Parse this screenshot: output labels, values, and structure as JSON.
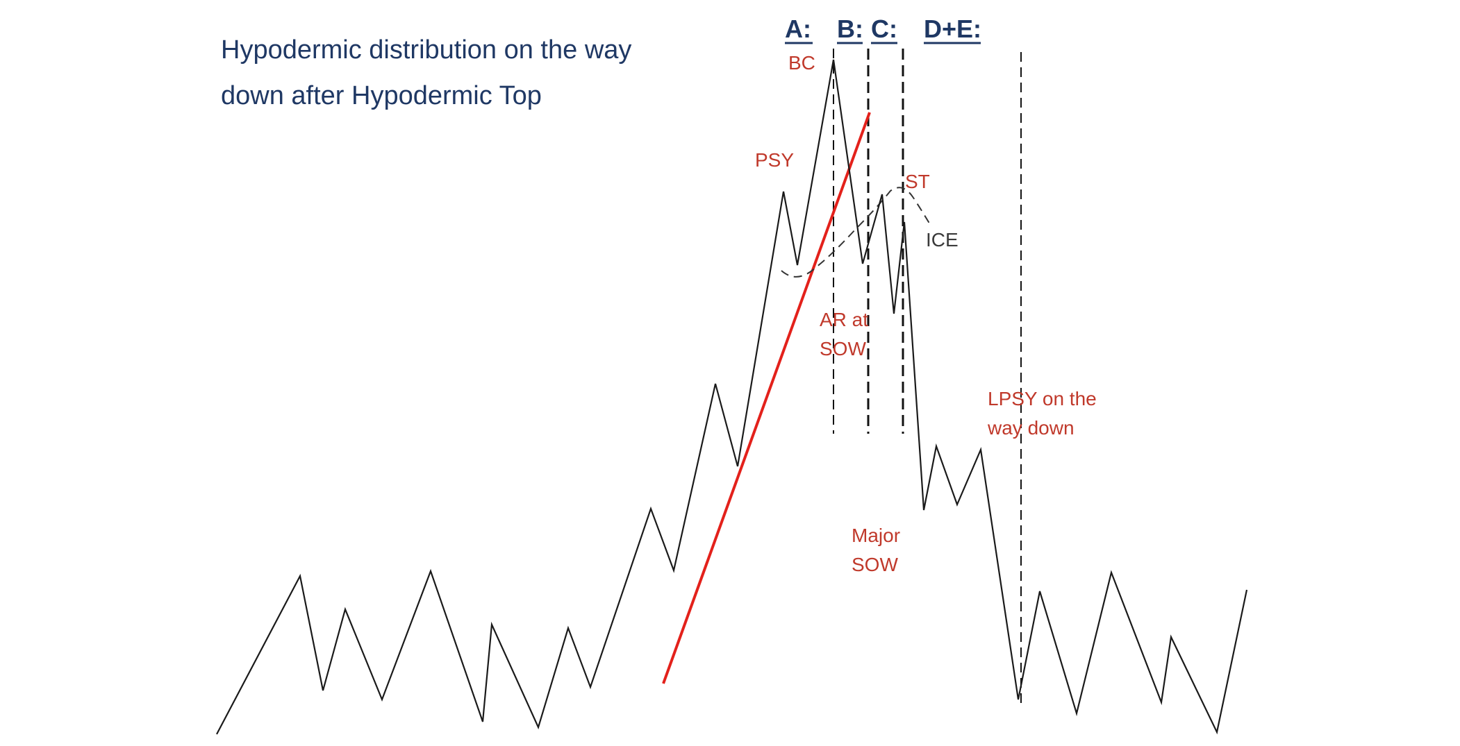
{
  "title": {
    "line1": "Hypodermic distribution on the way",
    "line2": "down after Hypodermic Top"
  },
  "phases": {
    "a": "A:",
    "b": "B:",
    "c": "C:",
    "de": "D+E:"
  },
  "annotations": {
    "bc": "BC",
    "psy": "PSY",
    "st": "ST",
    "ice": "ICE",
    "ar_line1": "AR at",
    "ar_line2": "SOW",
    "lpsy_line1": "LPSY on the",
    "lpsy_line2": "way down",
    "major_line1": "Major",
    "major_line2": "SOW"
  },
  "colors": {
    "title": "#1f3864",
    "annotation": "#c0392b",
    "trendline": "#e3211b",
    "price": "#1a1a1a"
  }
}
